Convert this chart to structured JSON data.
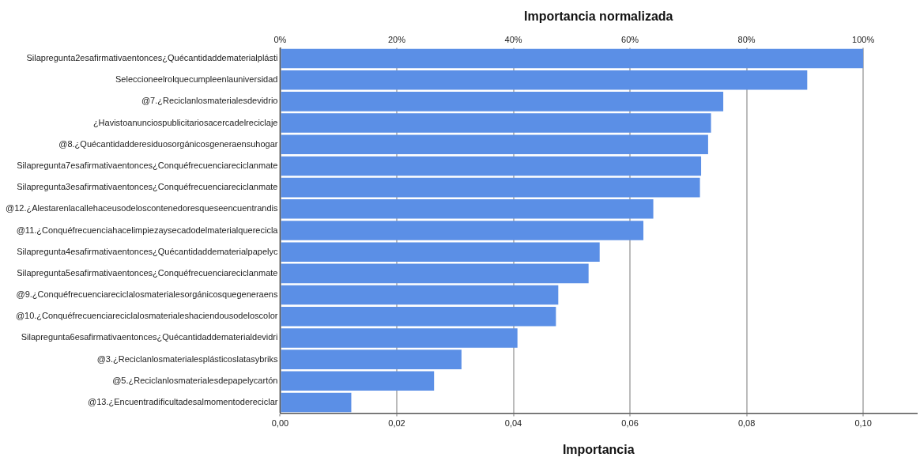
{
  "chart_data": {
    "type": "bar",
    "orientation": "horizontal",
    "xlabel": "Importancia",
    "x2label": "Importancia normalizada",
    "categories": [
      "Silapregunta2esafirmativaentonces¿Quécantidaddematerialplásti",
      "Seleccioneelrolquecumpleenlauniversidad",
      "@7.¿Reciclanlosmaterialesdevidrio",
      "¿Havistoanunciospublicitariosacercadelreciclaje",
      "@8.¿Quécantidadderesiduosorgánicosgeneraensuhogar",
      "Silapregunta7esafirmativaentonces¿Conquéfrecuenciareciclanmate",
      "Silapregunta3esafirmativaentonces¿Conquéfrecuenciareciclanmate",
      "@12.¿Alestarenlacallehaceusodeloscontenedoresqueseencuentrandis",
      "@11.¿Conquéfrecuenciahacelimpiezaysecadodelmaterialquerecicla",
      "Silapregunta4esafirmativaentonces¿Quécantidaddematerialpapelyc",
      "Silapregunta5esafirmativaentonces¿Conquéfrecuenciareciclanmate",
      "@9.¿Conquéfrecuenciareciclalosmaterialesorgánicosquegeneraens",
      "@10.¿Conquéfrecuenciareciclalosmaterialeshaciendousodeloscolor",
      "Silapregunta6esafirmativaentonces¿Quécantidaddematerialdevidri",
      "@3.¿Reciclanlosmaterialesplásticoslatasybriks",
      "@5.¿Reciclanlosmaterialesdepapelycartón",
      "@13.¿Encuentradificultadesalmomentodereciclar"
    ],
    "values": [
      0.1,
      0.0904,
      0.076,
      0.0739,
      0.0734,
      0.0722,
      0.072,
      0.064,
      0.0623,
      0.0548,
      0.0529,
      0.0477,
      0.0473,
      0.0407,
      0.0311,
      0.0264,
      0.0122
    ],
    "color": "#5b8fe6",
    "xlim": [
      0,
      0.1092
    ],
    "xticks": [
      {
        "value": 0,
        "label": "0,00"
      },
      {
        "value": 0.02,
        "label": "0,02"
      },
      {
        "value": 0.04,
        "label": "0,04"
      },
      {
        "value": 0.06,
        "label": "0,06"
      },
      {
        "value": 0.08,
        "label": "0,08"
      },
      {
        "value": 0.1,
        "label": "0,10"
      }
    ],
    "x2lim": [
      0,
      109.2
    ],
    "x2ticks": [
      {
        "value": 0,
        "label": "0%"
      },
      {
        "value": 20,
        "label": "20%"
      },
      {
        "value": 40,
        "label": "40%"
      },
      {
        "value": 60,
        "label": "60%"
      },
      {
        "value": 80,
        "label": "80%"
      },
      {
        "value": 100,
        "label": "100%"
      }
    ],
    "grid": "x",
    "legend": false
  }
}
